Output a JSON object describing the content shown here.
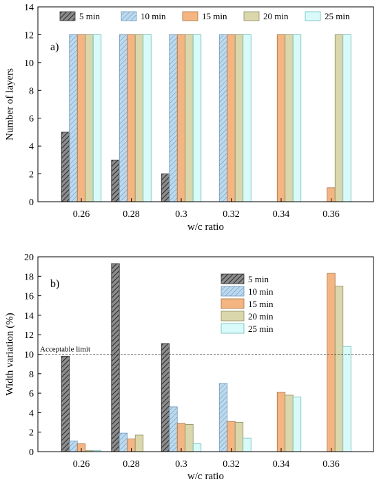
{
  "chart_data": [
    {
      "type": "bar",
      "panel_label": "a)",
      "categories": [
        "0.26",
        "0.28",
        "0.3",
        "0.32",
        "0.34",
        "0.36"
      ],
      "xlabel": "w/c ratio",
      "ylabel": "Number of layers",
      "ylim": [
        0,
        14
      ],
      "yticks": [
        0,
        2,
        4,
        6,
        8,
        10,
        12,
        14
      ],
      "legend": {
        "placement": "top",
        "orientation": "horizontal"
      },
      "grid": false,
      "series": [
        {
          "name": "5 min",
          "values": [
            5,
            3,
            2,
            null,
            null,
            null
          ]
        },
        {
          "name": "10 min",
          "values": [
            12,
            12,
            12,
            12,
            null,
            null
          ]
        },
        {
          "name": "15 min",
          "values": [
            12,
            12,
            12,
            12,
            12,
            1
          ]
        },
        {
          "name": "20 min",
          "values": [
            12,
            12,
            12,
            12,
            12,
            12
          ]
        },
        {
          "name": "25 min",
          "values": [
            12,
            12,
            12,
            12,
            12,
            12
          ]
        }
      ]
    },
    {
      "type": "bar",
      "panel_label": "b)",
      "categories": [
        "0.26",
        "0.28",
        "0.3",
        "0.32",
        "0.34",
        "0.36"
      ],
      "xlabel": "w/c ratio",
      "ylabel": "Width variation (%)",
      "ylim": [
        0,
        20
      ],
      "yticks": [
        0,
        2,
        4,
        6,
        8,
        10,
        12,
        14,
        16,
        18,
        20
      ],
      "legend": {
        "placement": "top-right",
        "orientation": "vertical"
      },
      "grid": false,
      "reference_line": {
        "value": 10,
        "label": "Acceptable limit",
        "style": "dashed"
      },
      "series": [
        {
          "name": "5 min",
          "values": [
            9.8,
            19.3,
            11.1,
            null,
            null,
            null
          ]
        },
        {
          "name": "10 min",
          "values": [
            1.1,
            1.9,
            4.6,
            7.0,
            null,
            null
          ]
        },
        {
          "name": "15 min",
          "values": [
            0.8,
            1.3,
            2.9,
            3.1,
            6.1,
            18.3
          ]
        },
        {
          "name": "20 min",
          "values": [
            0.1,
            1.7,
            2.8,
            3.0,
            5.8,
            17.0
          ]
        },
        {
          "name": "25 min",
          "values": [
            0.1,
            null,
            0.8,
            1.4,
            5.6,
            10.8
          ]
        }
      ]
    }
  ],
  "series_styles": [
    {
      "fill": "#8c8c8c",
      "pattern": "dark-hatch"
    },
    {
      "fill": "#bcd9ee",
      "pattern": "blue-hatch"
    },
    {
      "fill": "#f5b583",
      "pattern": "none"
    },
    {
      "fill": "#d9d7ab",
      "pattern": "none"
    },
    {
      "fill": "#d8fbfa",
      "pattern": "none"
    }
  ]
}
